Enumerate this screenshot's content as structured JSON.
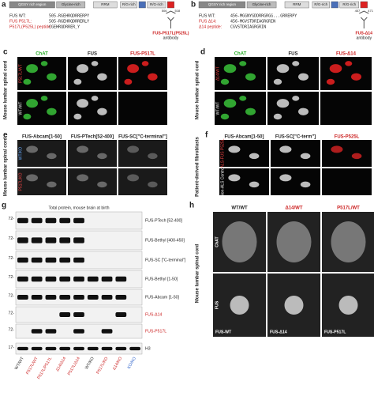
{
  "panel_a": {
    "letter": "a",
    "domains": [
      "QGSY rich region",
      "Glycine-rich",
      "RRM",
      "R/G-rich",
      "R/G-rich"
    ],
    "lines": [
      {
        "label": "FUS WT:",
        "sequence": "505-RGEHRQDRRERPY"
      },
      {
        "label": "FUS P517L:",
        "sequence": "505-RGEHRQDRRERLY"
      },
      {
        "label": "P517L(P525L) peptide:",
        "sequence": "CGEHRQDRRER_Y"
      }
    ],
    "start": "506",
    "end": "518",
    "antibody": "FUS-P517L(P525L)",
    "antibody_note": "antibody"
  },
  "panel_b": {
    "letter": "b",
    "domains": [
      "QGSY rich region",
      "Glycine-rich",
      "RRM",
      "R/G-rich",
      "R/G-rich"
    ],
    "lines": [
      {
        "label": "FUS WT:",
        "sequence": "456-MGGNYGDDRRGRGG...GRRERPY"
      },
      {
        "label": "FUS Δ14:",
        "sequence": "456-MGVSTDRIAGRGRIN"
      },
      {
        "label": "Δ14 peptide:",
        "sequence": "CGVSTDRIAGRGRIN"
      }
    ],
    "start": "457",
    "end": "471",
    "antibody": "FUS-Δ14",
    "antibody_note": "antibody"
  },
  "panel_c": {
    "letter": "c",
    "side": "Mouse lumbar spinal cord",
    "columns": [
      "ChAT",
      "FUS",
      "FUS-P517L"
    ],
    "rows": [
      "P517L/WT",
      "WT/WT"
    ]
  },
  "panel_d": {
    "letter": "d",
    "side": "Mouse lumbar spinal cord",
    "columns": [
      "ChAT",
      "FUS",
      "FUS-Δ14"
    ],
    "rows": [
      "Δ14/WT",
      "WT/WT"
    ]
  },
  "panel_e": {
    "letter": "e",
    "side": "Mouse lumbar spinal cord",
    "columns": [
      "FUS-Abcam[1-50]",
      "FUS-PTech[52-400]",
      "FUS-SC[\"C-terminal\"]"
    ],
    "rows": [
      "WT/KO",
      "P517L/KO"
    ]
  },
  "panel_f": {
    "letter": "f",
    "side": "Patient-derived fibroblasts",
    "columns": [
      "FUS-Abcam[1-50]",
      "FUS-SC[\"C-term\"]",
      "FUS-P525L"
    ],
    "rows": [
      "ALS-FUS P525L",
      "Non-ALS Control"
    ]
  },
  "panel_g": {
    "letter": "g",
    "title": "Total protein, mouse brain at birth",
    "blots": [
      {
        "marker": "72-",
        "label": "FUS-PTech [52-400]"
      },
      {
        "marker": "72-",
        "label": "FUS-Bethyl [400-450]"
      },
      {
        "marker": "72-",
        "label": "FUS-SC [\"C-terminal\"]"
      },
      {
        "marker": "72-",
        "label": "FUS-Bethyl [1-50]"
      },
      {
        "marker": "72-",
        "label": "FUS-Abcam [1-50]"
      },
      {
        "marker": "72-",
        "label": "FUS-Δ14"
      },
      {
        "marker": "72-",
        "label": "FUS-P517L"
      },
      {
        "marker": "17-",
        "label": "H3"
      }
    ],
    "lanes": [
      "WT/WT",
      "P517L/WT",
      "P517L/P517L",
      "Δ14/Δ14",
      "P517L/Δ14",
      "WT/KO",
      "P517L/KO",
      "Δ14/KO",
      "KO/KO"
    ]
  },
  "panel_h": {
    "letter": "h",
    "side": "Mouse lumbar spinal cord",
    "columns": [
      "WT/WT",
      "Δ14/WT",
      "P517L/WT"
    ],
    "rows": [
      "ChAT",
      "FUS"
    ],
    "labels": [
      "FUS-WT",
      "FUS-Δ14",
      "FUS-P517L"
    ]
  }
}
